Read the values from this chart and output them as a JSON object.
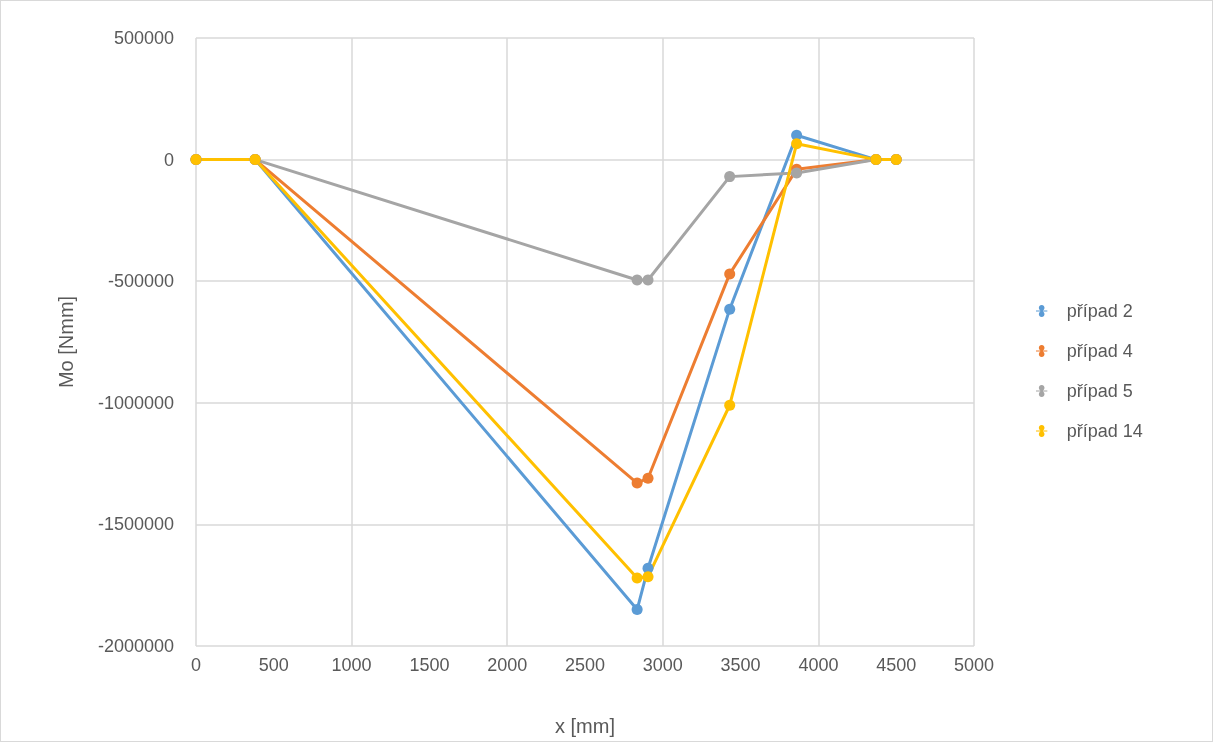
{
  "chart_data": {
    "type": "line",
    "xlabel": "x [mm]",
    "ylabel": "Mo [Nmm]",
    "x": [
      0,
      380,
      2835,
      2905,
      3430,
      3860,
      4370,
      4500
    ],
    "series": [
      {
        "name": "případ 2",
        "color": "#5b9bd5",
        "values": [
          0,
          0,
          -1850000,
          -1680000,
          -615000,
          100000,
          0,
          0
        ]
      },
      {
        "name": "případ 4",
        "color": "#ed7d31",
        "values": [
          0,
          0,
          -1330000,
          -1310000,
          -470000,
          -40000,
          0,
          0
        ]
      },
      {
        "name": "případ 5",
        "color": "#a5a5a5",
        "values": [
          0,
          0,
          -495000,
          -495000,
          -70000,
          -55000,
          0,
          0
        ]
      },
      {
        "name": "případ 14",
        "color": "#ffc000",
        "values": [
          0,
          0,
          -1720000,
          -1715000,
          -1010000,
          65000,
          0,
          0
        ]
      }
    ],
    "xlim": [
      0,
      5000
    ],
    "xticks": [
      0,
      500,
      1000,
      1500,
      2000,
      2500,
      3000,
      3500,
      4000,
      4500,
      5000
    ],
    "ylim": [
      -2000000,
      500000
    ],
    "yticks": [
      -2000000,
      -1500000,
      -1000000,
      -500000,
      0,
      500000
    ],
    "grid": true,
    "legend": "right",
    "marker": "circle",
    "line_style": "solid"
  }
}
